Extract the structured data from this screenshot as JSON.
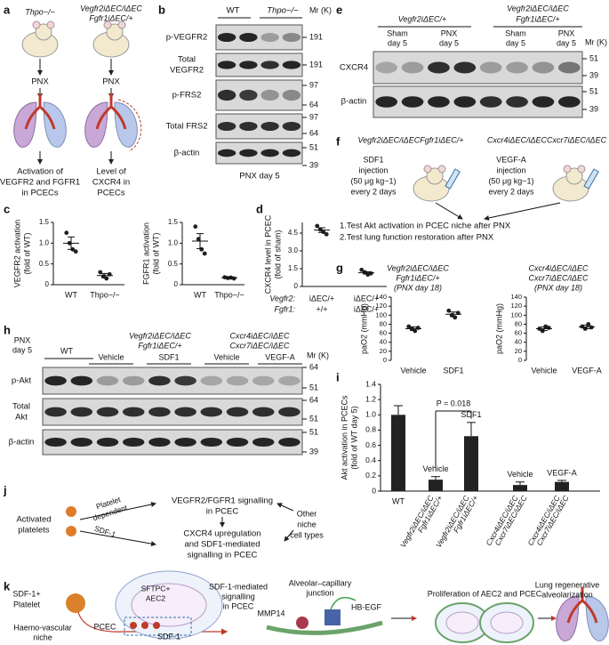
{
  "panel_labels": {
    "a": "a",
    "b": "b",
    "c": "c",
    "d": "d",
    "e": "e",
    "f": "f",
    "g": "g",
    "h": "h",
    "i": "i",
    "j": "j",
    "k": "k"
  },
  "a": {
    "genotypes": [
      [
        "Thpo−/−"
      ],
      [
        "Vegfr2iΔEC/iΔEC",
        "Fgfr1iΔEC/+"
      ]
    ],
    "treatment": [
      "PNX",
      "PNX"
    ],
    "outcomes": [
      [
        "Activation of",
        "VEGFR2 and FGFR1",
        "in PCECs"
      ],
      [
        "Level of",
        "CXCR4 in",
        "PCECs"
      ]
    ]
  },
  "b": {
    "groups": [
      "WT",
      "Thpo−/−"
    ],
    "rows": [
      [
        "p-VEGFR2"
      ],
      [
        "Total",
        "VEGFR2"
      ],
      [
        "p-FRS2"
      ],
      [
        "Total FRS2"
      ],
      [
        "β-actin"
      ]
    ],
    "mr_header": "Mr (K)",
    "markers": [
      191,
      191,
      97,
      64,
      97,
      64,
      51,
      39
    ],
    "footer": "PNX day 5"
  },
  "e": {
    "groups": [
      [
        "Vegfr2iΔEC/+"
      ],
      [
        "Vegfr2iΔEC/iΔEC",
        "Fgfr1iΔEC/+"
      ]
    ],
    "conditions": [
      [
        "Sham",
        "day 5"
      ],
      [
        "PNX",
        "day 5"
      ],
      [
        "Sham",
        "day 5"
      ],
      [
        "PNX",
        "day 5"
      ]
    ],
    "rows": [
      "CXCR4",
      "β-actin"
    ],
    "mr_header": "Mr (K)",
    "markers": [
      51,
      39,
      51,
      39
    ]
  },
  "f": {
    "genotypes": [
      "Vegfr2iΔEC/iΔECFgfr1iΔEC/+",
      "Cxcr4iΔEC/iΔECCxcr7iΔEC/iΔEC"
    ],
    "injections": [
      [
        "SDF1",
        "injection",
        "(50 μg kg−1)",
        "every 2 days"
      ],
      [
        "VEGF-A",
        "injection",
        "(50 μg kg−1)",
        "every 2 days"
      ]
    ],
    "tests": [
      "1.Test Akt activation in PCEC niche after PNX",
      "2.Test lung function restoration after PNX"
    ]
  },
  "h": {
    "time": [
      "PNX",
      "day 5"
    ],
    "groups": [
      [
        "WT"
      ],
      [
        "Vegfr2iΔEC/iΔEC",
        "Fgfr1iΔEC/+"
      ],
      [
        "Cxcr4iΔEC/iΔEC",
        "Cxcr7iΔEC/iΔEC"
      ]
    ],
    "treatments": [
      "Vehicle",
      "SDF1",
      "Vehicle",
      "VEGF-A"
    ],
    "rows": [
      [
        "p-Akt"
      ],
      [
        "Total",
        "Akt"
      ],
      [
        "β-actin"
      ]
    ],
    "mr_header": "Mr (K)",
    "markers": [
      64,
      51,
      64,
      51,
      51,
      39
    ]
  },
  "j": {
    "source": [
      "Activated",
      "platelets"
    ],
    "routes": [
      [
        "Platelet",
        "dependent"
      ],
      [
        "SDF-1"
      ]
    ],
    "steps": [
      [
        "VEGFR2/FGFR1 signalling",
        "in PCEC"
      ],
      [
        "CXCR4 upregulation",
        "and SDF1-mediated",
        "signalling in PCEC"
      ]
    ],
    "other": [
      "Other",
      "niche",
      "cell types"
    ]
  },
  "k": {
    "platelet": [
      "SDF-1+",
      "Platelet"
    ],
    "niche": [
      "Haemo-vascular",
      "niche"
    ],
    "pcec": "PCEC",
    "aec2": [
      "SFTPC+",
      "AEC2"
    ],
    "sdf1": "SDF-1",
    "signalling": [
      "SDF-1-mediated",
      "signalling",
      "in PCEC"
    ],
    "junction": [
      "Alveolar–capillary",
      "junction"
    ],
    "hbegf": "HB-EGF",
    "mmp14": "MMP14",
    "proliferation": "Proliferation of AEC2 and PCEC",
    "outcome": [
      "Lung regenerative",
      "alveolarization"
    ]
  },
  "chart_data": [
    {
      "type": "scatter",
      "ylabel": [
        "VEGFR2 activation",
        "(fold of WT)"
      ],
      "categories": [
        "WT",
        "Thpo−/−"
      ],
      "values": [
        [
          1.25,
          1.0,
          0.85,
          0.8
        ],
        [
          0.3,
          0.2,
          0.15,
          0.25
        ]
      ],
      "means": [
        1.0,
        0.22
      ],
      "sems": [
        0.15,
        0.05
      ],
      "color": "#222",
      "ylim": [
        0,
        1.5
      ],
      "yticks": [
        0,
        0.5,
        {
          "value": 1,
          "label": "1.0"
        },
        1.5
      ]
    },
    {
      "type": "scatter",
      "ylabel": [
        "FGFR1 activation",
        "(fold of WT)"
      ],
      "categories": [
        "WT",
        "Thpo−/−"
      ],
      "values": [
        [
          1.4,
          1.1,
          0.85,
          0.75
        ],
        [
          0.18,
          0.16,
          0.17,
          0.15
        ]
      ],
      "means": [
        1.05,
        0.17
      ],
      "sems": [
        0.18,
        0.01
      ],
      "color": "#222",
      "ylim": [
        0,
        1.5
      ],
      "yticks": [
        0,
        0.5,
        {
          "value": 1,
          "label": "1.0"
        },
        1.5
      ]
    },
    {
      "type": "scatter",
      "ylabel": [
        "CXCR4 level in PCEC",
        "(fold of sham)"
      ],
      "category_rows": [
        "Vegfr2:",
        "Fgfr1:"
      ],
      "categories": [
        [
          "iΔEC/+",
          "+/+"
        ],
        [
          "iΔEC/+",
          "iΔEC/+"
        ]
      ],
      "values": [
        [
          5.1,
          4.8,
          4.6,
          4.4
        ],
        [
          1.4,
          1.2,
          1.0,
          1.1
        ]
      ],
      "means": [
        4.75,
        1.15
      ],
      "sems": [
        0.2,
        0.1
      ],
      "color": "#222",
      "ylim": [
        0,
        5.4
      ],
      "yticks": [
        0,
        1.5,
        {
          "value": 3,
          "label": "3.0"
        },
        4.5
      ]
    },
    {
      "type": "scatter",
      "title": [
        "Vegfr2iΔEC/iΔEC",
        "Fgfr1iΔEC/+",
        "(PNX day 18)"
      ],
      "ylabel": [
        "paO2 (mmHg)"
      ],
      "categories": [
        "Vehicle",
        "SDF1"
      ],
      "values": [
        [
          75,
          70,
          65,
          72
        ],
        [
          110,
          100,
          95,
          105
        ]
      ],
      "means": [
        70,
        102
      ],
      "sems": [
        4,
        5
      ],
      "color": "#222",
      "ylim": [
        0,
        140
      ],
      "yticks": [
        0,
        20,
        40,
        60,
        80,
        100,
        120,
        140
      ]
    },
    {
      "type": "scatter",
      "title": [
        "Cxcr4iΔEC/iΔEC",
        "Cxcr7iΔEC/iΔEC",
        "(PNX day 18)"
      ],
      "ylabel": [
        "paO2 (mmHg)"
      ],
      "categories": [
        "Vehicle",
        "VEGF-A"
      ],
      "values": [
        [
          70,
          65,
          75,
          72
        ],
        [
          75,
          70,
          80,
          73
        ]
      ],
      "means": [
        70,
        74
      ],
      "sems": [
        4,
        4
      ],
      "color": "#222",
      "ylim": [
        0,
        140
      ],
      "yticks": [
        0,
        20,
        40,
        60,
        80,
        100,
        120,
        140
      ]
    },
    {
      "type": "bar",
      "ylabel": [
        "Akt activation in PCECs",
        "(fold of WT day 5)"
      ],
      "categories": [
        [
          "WT"
        ],
        [
          "Vegfr2iΔEC/iΔEC",
          "Fgfr1iΔEC/+"
        ],
        [
          "Vegfr2iΔEC/iΔEC",
          "Fgfr1iΔEC/+"
        ],
        [
          "Cxcr4iΔEC/iΔEC",
          "Cxcr7iΔEC/iΔEC"
        ],
        [
          "Cxcr4iΔEC/iΔEC",
          "Cxcr7iΔEC/iΔEC"
        ]
      ],
      "bar_labels": [
        null,
        "Vehicle",
        "SDF1",
        "Vehicle",
        "VEGF-A"
      ],
      "values": [
        1.0,
        0.15,
        0.72,
        0.08,
        0.12
      ],
      "errors": [
        0.12,
        0.04,
        0.18,
        0.04,
        0.02
      ],
      "annotation": "P = 0.018",
      "color": "#222",
      "ylim": [
        0,
        1.4
      ],
      "yticks": [
        0,
        0.2,
        0.4,
        0.6,
        0.8,
        {
          "value": 1,
          "label": "1.0"
        },
        1.2,
        1.4
      ]
    }
  ]
}
